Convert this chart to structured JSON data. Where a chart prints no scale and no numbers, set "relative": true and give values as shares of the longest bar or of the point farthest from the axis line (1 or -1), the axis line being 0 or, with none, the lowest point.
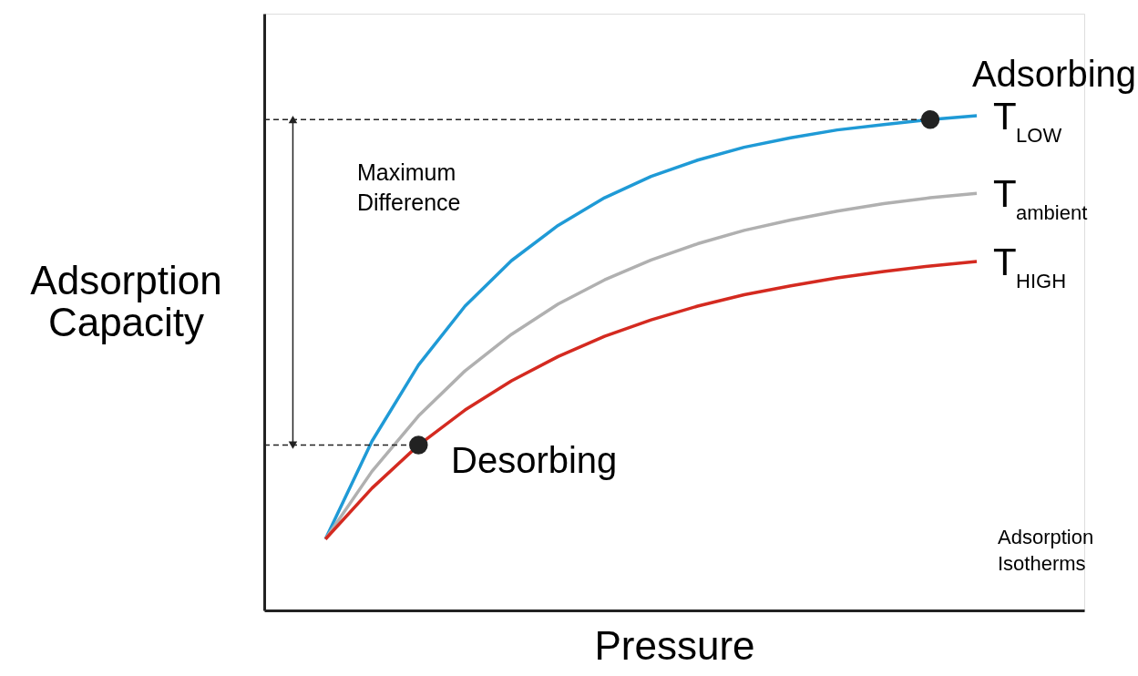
{
  "chart_data": {
    "type": "line",
    "relative": true,
    "xlabel": "Pressure",
    "ylabel": "Adsorption Capacity",
    "categories": [
      null,
      null,
      null,
      null,
      null,
      null,
      null,
      null,
      null,
      null,
      null,
      null,
      null,
      null,
      null
    ],
    "series": [
      {
        "name": "T$_{LOW}$",
        "color": "#1f9ad6",
        "values": [
          0.144,
          0.342,
          0.496,
          0.615,
          0.707,
          0.778,
          0.834,
          0.877,
          0.91,
          0.936,
          0.955,
          0.971,
          0.982,
          0.992,
          1.0
        ]
      },
      {
        "name": "T$_{ambient}$",
        "color": "#b0b0b0",
        "values": [
          0.144,
          0.281,
          0.393,
          0.484,
          0.558,
          0.619,
          0.668,
          0.708,
          0.741,
          0.768,
          0.789,
          0.807,
          0.822,
          0.834,
          0.843
        ]
      },
      {
        "name": "T$_{HIGH}$",
        "color": "#d42a20",
        "values": [
          0.144,
          0.247,
          0.334,
          0.405,
          0.464,
          0.513,
          0.554,
          0.587,
          0.615,
          0.638,
          0.656,
          0.672,
          0.685,
          0.696,
          0.705
        ]
      }
    ],
    "ref_lines": [
      {
        "axis": "y",
        "value": 0.992,
        "line_style": "dashed",
        "color": "#222222"
      },
      {
        "axis": "y",
        "value": 0.334,
        "line_style": "dashed",
        "color": "#222222"
      }
    ],
    "annotations": [
      "Adsorbing",
      "Desorbing",
      "Maximum Difference",
      "Adsorption Isotherms"
    ],
    "grid": false,
    "legend": "right",
    "line_style": "solid"
  }
}
